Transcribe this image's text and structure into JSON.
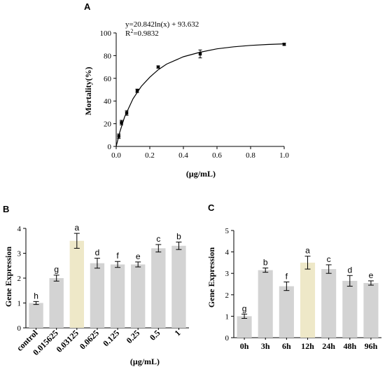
{
  "chart_data": [
    {
      "panel": "A",
      "type": "scatter",
      "xlabel": "(μg/mL)",
      "ylabel": "Mortality(%)",
      "xlim": [
        0,
        1.0
      ],
      "ylim": [
        0,
        100
      ],
      "xticks": [
        "0.0",
        "0.2",
        "0.4",
        "0.6",
        "0.8",
        "1.0"
      ],
      "yticks": [
        "0",
        "20",
        "40",
        "60",
        "80",
        "100"
      ],
      "equation": "y=20.842ln(x) + 93.632",
      "r2_label": "R",
      "r2_sup": "2",
      "r2_value": "=0.9832",
      "points": [
        {
          "x": 0.0156,
          "y": 9,
          "err": 2
        },
        {
          "x": 0.03125,
          "y": 21,
          "err": 2
        },
        {
          "x": 0.0625,
          "y": 29.5,
          "err": 2
        },
        {
          "x": 0.125,
          "y": 49,
          "err": 1.5
        },
        {
          "x": 0.25,
          "y": 70,
          "err": 1
        },
        {
          "x": 0.5,
          "y": 81.5,
          "err": 3.5
        },
        {
          "x": 1.0,
          "y": 90,
          "err": 1
        }
      ],
      "fit_curve": [
        [
          0.0,
          0
        ],
        [
          0.02,
          12
        ],
        [
          0.05,
          26
        ],
        [
          0.1,
          42
        ],
        [
          0.15,
          53
        ],
        [
          0.2,
          61
        ],
        [
          0.25,
          67.5
        ],
        [
          0.3,
          72.5
        ],
        [
          0.4,
          79
        ],
        [
          0.5,
          83
        ],
        [
          0.6,
          86
        ],
        [
          0.7,
          87.8
        ],
        [
          0.8,
          89
        ],
        [
          0.9,
          89.8
        ],
        [
          1.0,
          90.4
        ]
      ]
    },
    {
      "panel": "B",
      "type": "bar",
      "xlabel": "(μg/mL)",
      "ylabel": "Gene Expression",
      "ylim": [
        0,
        4
      ],
      "yticks": [
        "0",
        "1",
        "2",
        "3",
        "4"
      ],
      "categories": [
        "control",
        "0.015625",
        "0.03125",
        "0.0625",
        "0.125",
        "0.25",
        "0.5",
        "1"
      ],
      "values": [
        1.0,
        2.0,
        3.5,
        2.6,
        2.55,
        2.55,
        3.2,
        3.3
      ],
      "errors": [
        0.06,
        0.12,
        0.3,
        0.2,
        0.12,
        0.1,
        0.15,
        0.15
      ],
      "letters": [
        "h",
        "g",
        "a",
        "d",
        "f",
        "e",
        "c",
        "b"
      ],
      "highlight_index": 2
    },
    {
      "panel": "C",
      "type": "bar",
      "xlabel": "",
      "ylabel": "Gene Expression",
      "ylim": [
        0,
        5
      ],
      "yticks": [
        "0",
        "1",
        "2",
        "3",
        "4",
        "5"
      ],
      "categories": [
        "0h",
        "3h",
        "6h",
        "12h",
        "24h",
        "48h",
        "96h"
      ],
      "values": [
        1.0,
        3.15,
        2.4,
        3.5,
        3.2,
        2.65,
        2.55
      ],
      "errors": [
        0.1,
        0.1,
        0.2,
        0.3,
        0.2,
        0.25,
        0.1
      ],
      "letters": [
        "g",
        "b",
        "f",
        "a",
        "c",
        "d",
        "e"
      ],
      "highlight_index": 3
    }
  ],
  "colors": {
    "bar": "#d3d3d3",
    "highlight": "#eee8c8",
    "axis": "#000000",
    "point": "#000000"
  }
}
